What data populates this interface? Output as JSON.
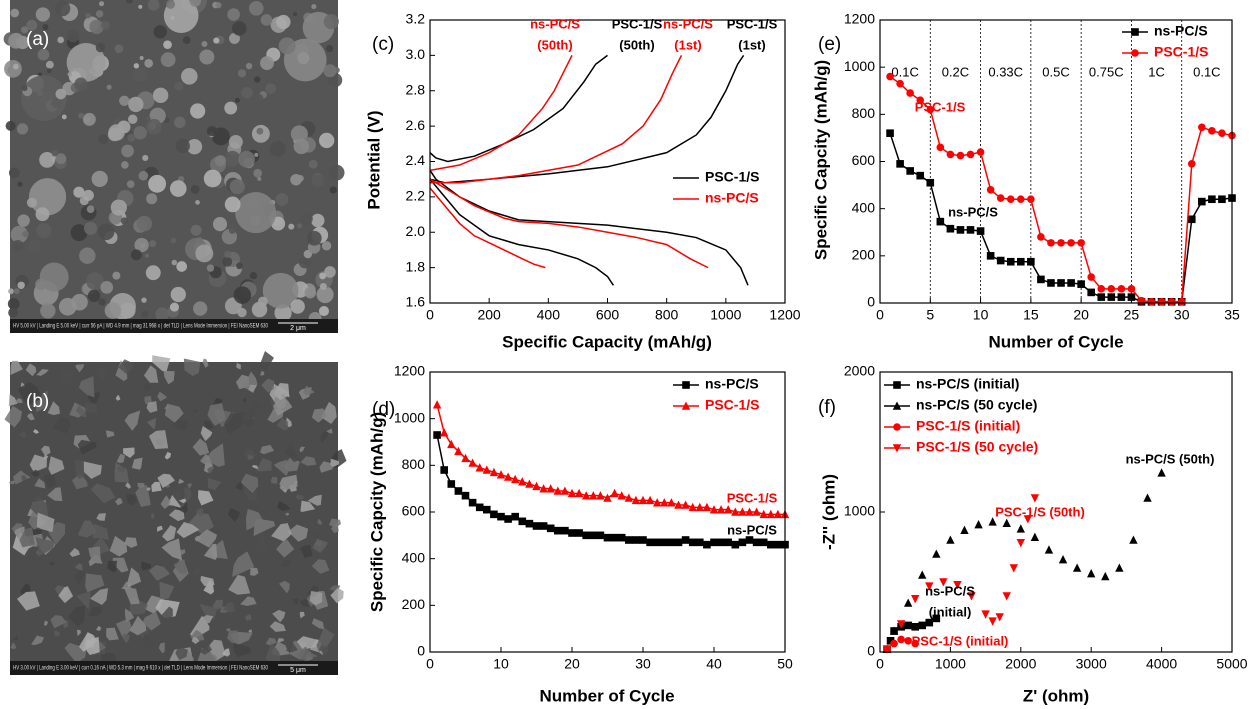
{
  "images": [
    {
      "label": "(a)",
      "info_bar": "HV 5.00 kV | Landing E 5.00 keV | curr 56 pA | WD 4.9 mm | mag 31 968 x | det TLD | Lens Mode Immersion | FEI NanoSEM 630",
      "scale_bar": "2 μm"
    },
    {
      "label": "(b)",
      "info_bar": "HV 3.00 kV | Landing E 3.00 keV | curr 0.16 nA | WD 5.3 mm | mag 9 610 x | det TLD | Lens Mode Immersion | FEI NanoSEM 630",
      "scale_bar": "5 μm"
    }
  ],
  "chart_data": [
    {
      "type": "line",
      "label": "(c)",
      "x_label": "Specific Capacity (mAh/g)",
      "y_label": "Potential (V)",
      "xlim": [
        0,
        1200
      ],
      "xticks": [
        0,
        200,
        400,
        600,
        800,
        1000,
        1200
      ],
      "ylim": [
        1.6,
        3.2
      ],
      "yticks": [
        1.6,
        1.8,
        {
          "value": 2,
          "label": "2.0"
        },
        2.2,
        2.4,
        2.6,
        2.8,
        {
          "value": 3,
          "label": "3.0"
        },
        3.2
      ],
      "legend": "center right",
      "series": [
        {
          "name": "PSC-1/S",
          "color": "#000000",
          "curves": [
            {
              "x": [
                0,
                20,
                100,
                200,
                300,
                400,
                500,
                600,
                700,
                800,
                900,
                1000,
                1050,
                1075
              ],
              "y": [
                2.35,
                2.3,
                2.2,
                2.12,
                2.07,
                2.06,
                2.05,
                2.04,
                2.02,
                2.0,
                1.97,
                1.9,
                1.8,
                1.7
              ]
            },
            {
              "x": [
                0,
                50,
                200,
                400,
                600,
                800,
                900,
                950,
                1000,
                1040,
                1060
              ],
              "y": [
                2.3,
                2.28,
                2.3,
                2.33,
                2.37,
                2.45,
                2.55,
                2.65,
                2.8,
                2.95,
                3.0
              ]
            },
            {
              "x": [
                0,
                50,
                100,
                200,
                300,
                400,
                500,
                560,
                600,
                620
              ],
              "y": [
                2.3,
                2.2,
                2.1,
                1.98,
                1.93,
                1.9,
                1.85,
                1.8,
                1.75,
                1.7
              ]
            },
            {
              "x": [
                0,
                20,
                60,
                150,
                250,
                350,
                450,
                520,
                560,
                600
              ],
              "y": [
                2.45,
                2.42,
                2.4,
                2.43,
                2.5,
                2.58,
                2.7,
                2.85,
                2.95,
                3.0
              ]
            }
          ]
        },
        {
          "name": "ns-PC/S",
          "color": "#ff0000",
          "curves": [
            {
              "x": [
                0,
                50,
                150,
                250,
                300,
                400,
                500,
                600,
                700,
                800,
                880,
                940
              ],
              "y": [
                2.3,
                2.25,
                2.15,
                2.08,
                2.06,
                2.05,
                2.03,
                2.0,
                1.97,
                1.93,
                1.85,
                1.8
              ]
            },
            {
              "x": [
                0,
                100,
                300,
                500,
                650,
                720,
                780,
                820,
                850
              ],
              "y": [
                2.28,
                2.28,
                2.32,
                2.38,
                2.5,
                2.6,
                2.75,
                2.9,
                3.0
              ]
            },
            {
              "x": [
                0,
                50,
                100,
                150,
                200,
                250,
                300,
                350,
                390
              ],
              "y": [
                2.25,
                2.15,
                2.05,
                1.98,
                1.94,
                1.9,
                1.86,
                1.82,
                1.8
              ]
            },
            {
              "x": [
                0,
                100,
                200,
                300,
                380,
                420,
                450,
                480
              ],
              "y": [
                2.35,
                2.38,
                2.45,
                2.55,
                2.7,
                2.8,
                2.9,
                3.0
              ]
            }
          ]
        }
      ],
      "annotations": [
        {
          "lines": [
            "ns-PC/S",
            "(50th)"
          ],
          "color": "#ff0000"
        },
        {
          "lines": [
            "PSC-1/S",
            "(50th)"
          ],
          "color": "#000000"
        },
        {
          "lines": [
            "ns-PC/S",
            "(1st)"
          ],
          "color": "#ff0000"
        },
        {
          "lines": [
            "PSC-1/S",
            "(1st)"
          ],
          "color": "#000000"
        }
      ]
    },
    {
      "type": "line",
      "label": "(d)",
      "x_label": "Number of Cycle",
      "y_label": "Specific Capcity (mAh/g)",
      "xlim": [
        0,
        50
      ],
      "xticks": [
        0,
        10,
        20,
        30,
        40,
        50
      ],
      "ylim": [
        0,
        1200
      ],
      "yticks": [
        0,
        200,
        400,
        600,
        800,
        1000,
        1200
      ],
      "legend": "upper right",
      "x": [
        1,
        2,
        3,
        4,
        5,
        6,
        7,
        8,
        9,
        10,
        11,
        12,
        13,
        14,
        15,
        16,
        17,
        18,
        19,
        20,
        21,
        22,
        23,
        24,
        25,
        26,
        27,
        28,
        29,
        30,
        31,
        32,
        33,
        34,
        35,
        36,
        37,
        38,
        39,
        40,
        41,
        42,
        43,
        44,
        45,
        46,
        47,
        48,
        49,
        50
      ],
      "series": [
        {
          "name": "ns-PC/S",
          "color": "#000000",
          "marker": "square",
          "values": [
            930,
            780,
            720,
            690,
            670,
            640,
            620,
            610,
            590,
            580,
            570,
            580,
            560,
            550,
            540,
            540,
            530,
            520,
            520,
            510,
            510,
            500,
            500,
            500,
            490,
            490,
            490,
            480,
            480,
            480,
            470,
            470,
            470,
            470,
            470,
            480,
            470,
            470,
            460,
            470,
            470,
            470,
            460,
            470,
            480,
            470,
            470,
            460,
            460,
            460
          ]
        },
        {
          "name": "PSC-1/S",
          "color": "#ff0000",
          "marker": "triangle",
          "values": [
            1060,
            940,
            890,
            860,
            830,
            810,
            790,
            780,
            770,
            760,
            750,
            740,
            730,
            720,
            710,
            700,
            700,
            690,
            690,
            680,
            680,
            670,
            670,
            670,
            660,
            680,
            670,
            660,
            650,
            650,
            650,
            640,
            640,
            640,
            630,
            630,
            620,
            620,
            620,
            610,
            610,
            610,
            600,
            600,
            600,
            600,
            590,
            590,
            590,
            590
          ]
        }
      ],
      "annotations": [
        {
          "lines": [
            "PSC-1/S"
          ],
          "color": "#ff0000"
        },
        {
          "lines": [
            "ns-PC/S"
          ],
          "color": "#000000"
        }
      ]
    },
    {
      "type": "line",
      "label": "(e)",
      "x_label": "Number of Cycle",
      "y_label": "Specific Capcity (mAh/g)",
      "xlim": [
        0,
        35
      ],
      "xticks": [
        0,
        5,
        10,
        15,
        20,
        25,
        30,
        35
      ],
      "ylim": [
        0,
        1200
      ],
      "yticks": [
        0,
        200,
        400,
        600,
        800,
        1000,
        1200
      ],
      "legend": "upper right",
      "rate_boundaries": [
        5,
        10,
        15,
        20,
        25,
        30
      ],
      "rate_labels": [
        "0.1C",
        "0.2C",
        "0.33C",
        "0.5C",
        "0.75C",
        "1C",
        "0.1C"
      ],
      "x": [
        1,
        2,
        3,
        4,
        5,
        6,
        7,
        8,
        9,
        10,
        11,
        12,
        13,
        14,
        15,
        16,
        17,
        18,
        19,
        20,
        21,
        22,
        23,
        24,
        25,
        26,
        27,
        28,
        29,
        30,
        31,
        32,
        33,
        34,
        35
      ],
      "series": [
        {
          "name": "ns-PC/S",
          "color": "#000000",
          "marker": "square",
          "values": [
            720,
            590,
            560,
            540,
            510,
            345,
            315,
            310,
            310,
            305,
            200,
            180,
            175,
            175,
            175,
            100,
            85,
            85,
            85,
            80,
            45,
            25,
            25,
            25,
            25,
            5,
            5,
            5,
            5,
            5,
            355,
            430,
            440,
            440,
            445
          ]
        },
        {
          "name": "PSC-1/S",
          "color": "#ff0000",
          "marker": "circle",
          "values": [
            960,
            930,
            890,
            860,
            820,
            660,
            630,
            625,
            630,
            640,
            480,
            445,
            440,
            440,
            440,
            280,
            255,
            255,
            255,
            255,
            110,
            60,
            60,
            60,
            60,
            10,
            5,
            5,
            5,
            5,
            590,
            745,
            730,
            720,
            710
          ]
        }
      ],
      "annotations": [
        {
          "lines": [
            "PSC-1/S"
          ],
          "color": "#ff0000"
        },
        {
          "lines": [
            "ns-PC/S"
          ],
          "color": "#000000"
        }
      ]
    },
    {
      "type": "scatter",
      "label": "(f)",
      "x_label": "Z' (ohm)",
      "y_label": "-Z'' (ohm)",
      "xlim": [
        0,
        5000
      ],
      "xticks": [
        0,
        1000,
        2000,
        3000,
        4000,
        5000
      ],
      "ylim": [
        0,
        2000
      ],
      "yticks": [
        0,
        1000,
        2000
      ],
      "legend": "upper left",
      "series": [
        {
          "name": "ns-PC/S (initial)",
          "color": "#000000",
          "marker": "square",
          "x": [
            100,
            150,
            200,
            300,
            400,
            500,
            600,
            700,
            800
          ],
          "y": [
            20,
            80,
            150,
            180,
            190,
            180,
            190,
            210,
            240
          ]
        },
        {
          "name": "ns-PC/S (50 cycle)",
          "color": "#000000",
          "marker": "triangle",
          "x": [
            100,
            200,
            400,
            600,
            800,
            1000,
            1200,
            1400,
            1600,
            1800,
            2000,
            2200,
            2400,
            2600,
            2800,
            3000,
            3200,
            3400,
            3600,
            3800,
            4000
          ],
          "y": [
            20,
            150,
            350,
            550,
            700,
            800,
            870,
            910,
            930,
            920,
            880,
            820,
            730,
            660,
            600,
            560,
            540,
            600,
            800,
            1100,
            1280
          ]
        },
        {
          "name": "PSC-1/S (initial)",
          "color": "#ff0000",
          "marker": "circle",
          "x": [
            100,
            200,
            300,
            400,
            500
          ],
          "y": [
            20,
            60,
            90,
            80,
            60
          ]
        },
        {
          "name": "PSC-1/S (50 cycle)",
          "color": "#ff0000",
          "marker": "triangle-down",
          "x": [
            100,
            300,
            500,
            700,
            900,
            1100,
            1300,
            1500,
            1600,
            1700,
            1800,
            1900,
            2000,
            2100,
            2200
          ],
          "y": [
            20,
            200,
            380,
            470,
            500,
            480,
            400,
            270,
            220,
            250,
            400,
            600,
            780,
            950,
            1100
          ]
        }
      ],
      "annotations": [
        {
          "lines": [
            "ns-PC/S (50th)"
          ],
          "color": "#000000"
        },
        {
          "lines": [
            "PSC-1/S (50th)"
          ],
          "color": "#ff0000"
        },
        {
          "lines": [
            "ns-PC/S",
            "(initial)"
          ],
          "color": "#000000"
        },
        {
          "lines": [
            "PSC-1/S (initial)"
          ],
          "color": "#ff0000"
        }
      ]
    }
  ]
}
